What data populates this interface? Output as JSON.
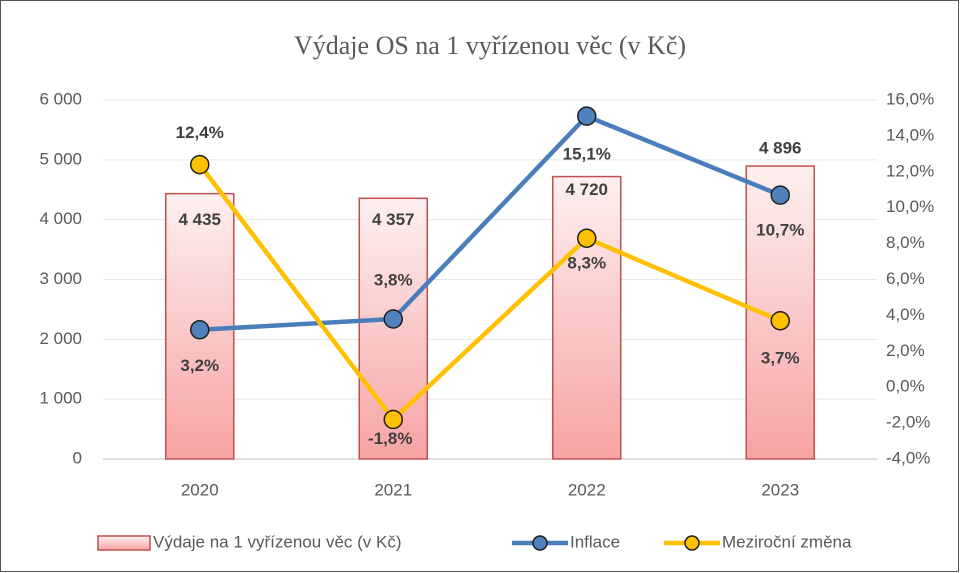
{
  "chart_data": {
    "type": "bar",
    "title": "Výdaje OS na 1 vyřízenou věc (v Kč)",
    "categories": [
      "2020",
      "2021",
      "2022",
      "2023"
    ],
    "series": [
      {
        "name": "Výdaje na 1 vyřízenou věc (v Kč)",
        "type": "bar",
        "axis": "y",
        "color": "#c0504d",
        "values": [
          4435,
          4357,
          4720,
          4896
        ],
        "value_labels": [
          "4 435",
          "4 357",
          "4 720",
          "4 896"
        ]
      },
      {
        "name": "Inflace",
        "type": "line",
        "axis": "y2",
        "color": "#4a7ebb",
        "values": [
          3.2,
          3.8,
          15.1,
          10.7
        ],
        "value_labels": [
          "3,2%",
          "3,8%",
          "15,1%",
          "10,7%"
        ]
      },
      {
        "name": "Meziroční změna",
        "type": "line",
        "axis": "y2",
        "color": "#ffc000",
        "values": [
          12.4,
          -1.8,
          8.3,
          3.7
        ],
        "value_labels": [
          "12,4%",
          "-1,8%",
          "8,3%",
          "3,7%"
        ]
      }
    ],
    "ylim": [
      0,
      6000
    ],
    "yticks": [
      0,
      {
        "value": 1000,
        "label": "1 000"
      },
      {
        "value": 2000,
        "label": "2 000"
      },
      {
        "value": 3000,
        "label": "3 000"
      },
      {
        "value": 4000,
        "label": "4 000"
      },
      {
        "value": 5000,
        "label": "5 000"
      },
      {
        "value": 6000,
        "label": "6 000"
      }
    ],
    "y2lim": [
      -4,
      16
    ],
    "y2ticks": [
      {
        "value": -4,
        "label": "-4,0%"
      },
      {
        "value": -2,
        "label": "-2,0%"
      },
      {
        "value": 0,
        "label": "0,0%"
      },
      {
        "value": 2,
        "label": "2,0%"
      },
      {
        "value": 4,
        "label": "4,0%"
      },
      {
        "value": 6,
        "label": "6,0%"
      },
      {
        "value": 8,
        "label": "8,0%"
      },
      {
        "value": 10,
        "label": "10,0%"
      },
      {
        "value": 12,
        "label": "12,0%"
      },
      {
        "value": 14,
        "label": "14,0%"
      },
      {
        "value": 16,
        "label": "16,0%"
      }
    ],
    "grid": true,
    "legend": "bottom"
  }
}
